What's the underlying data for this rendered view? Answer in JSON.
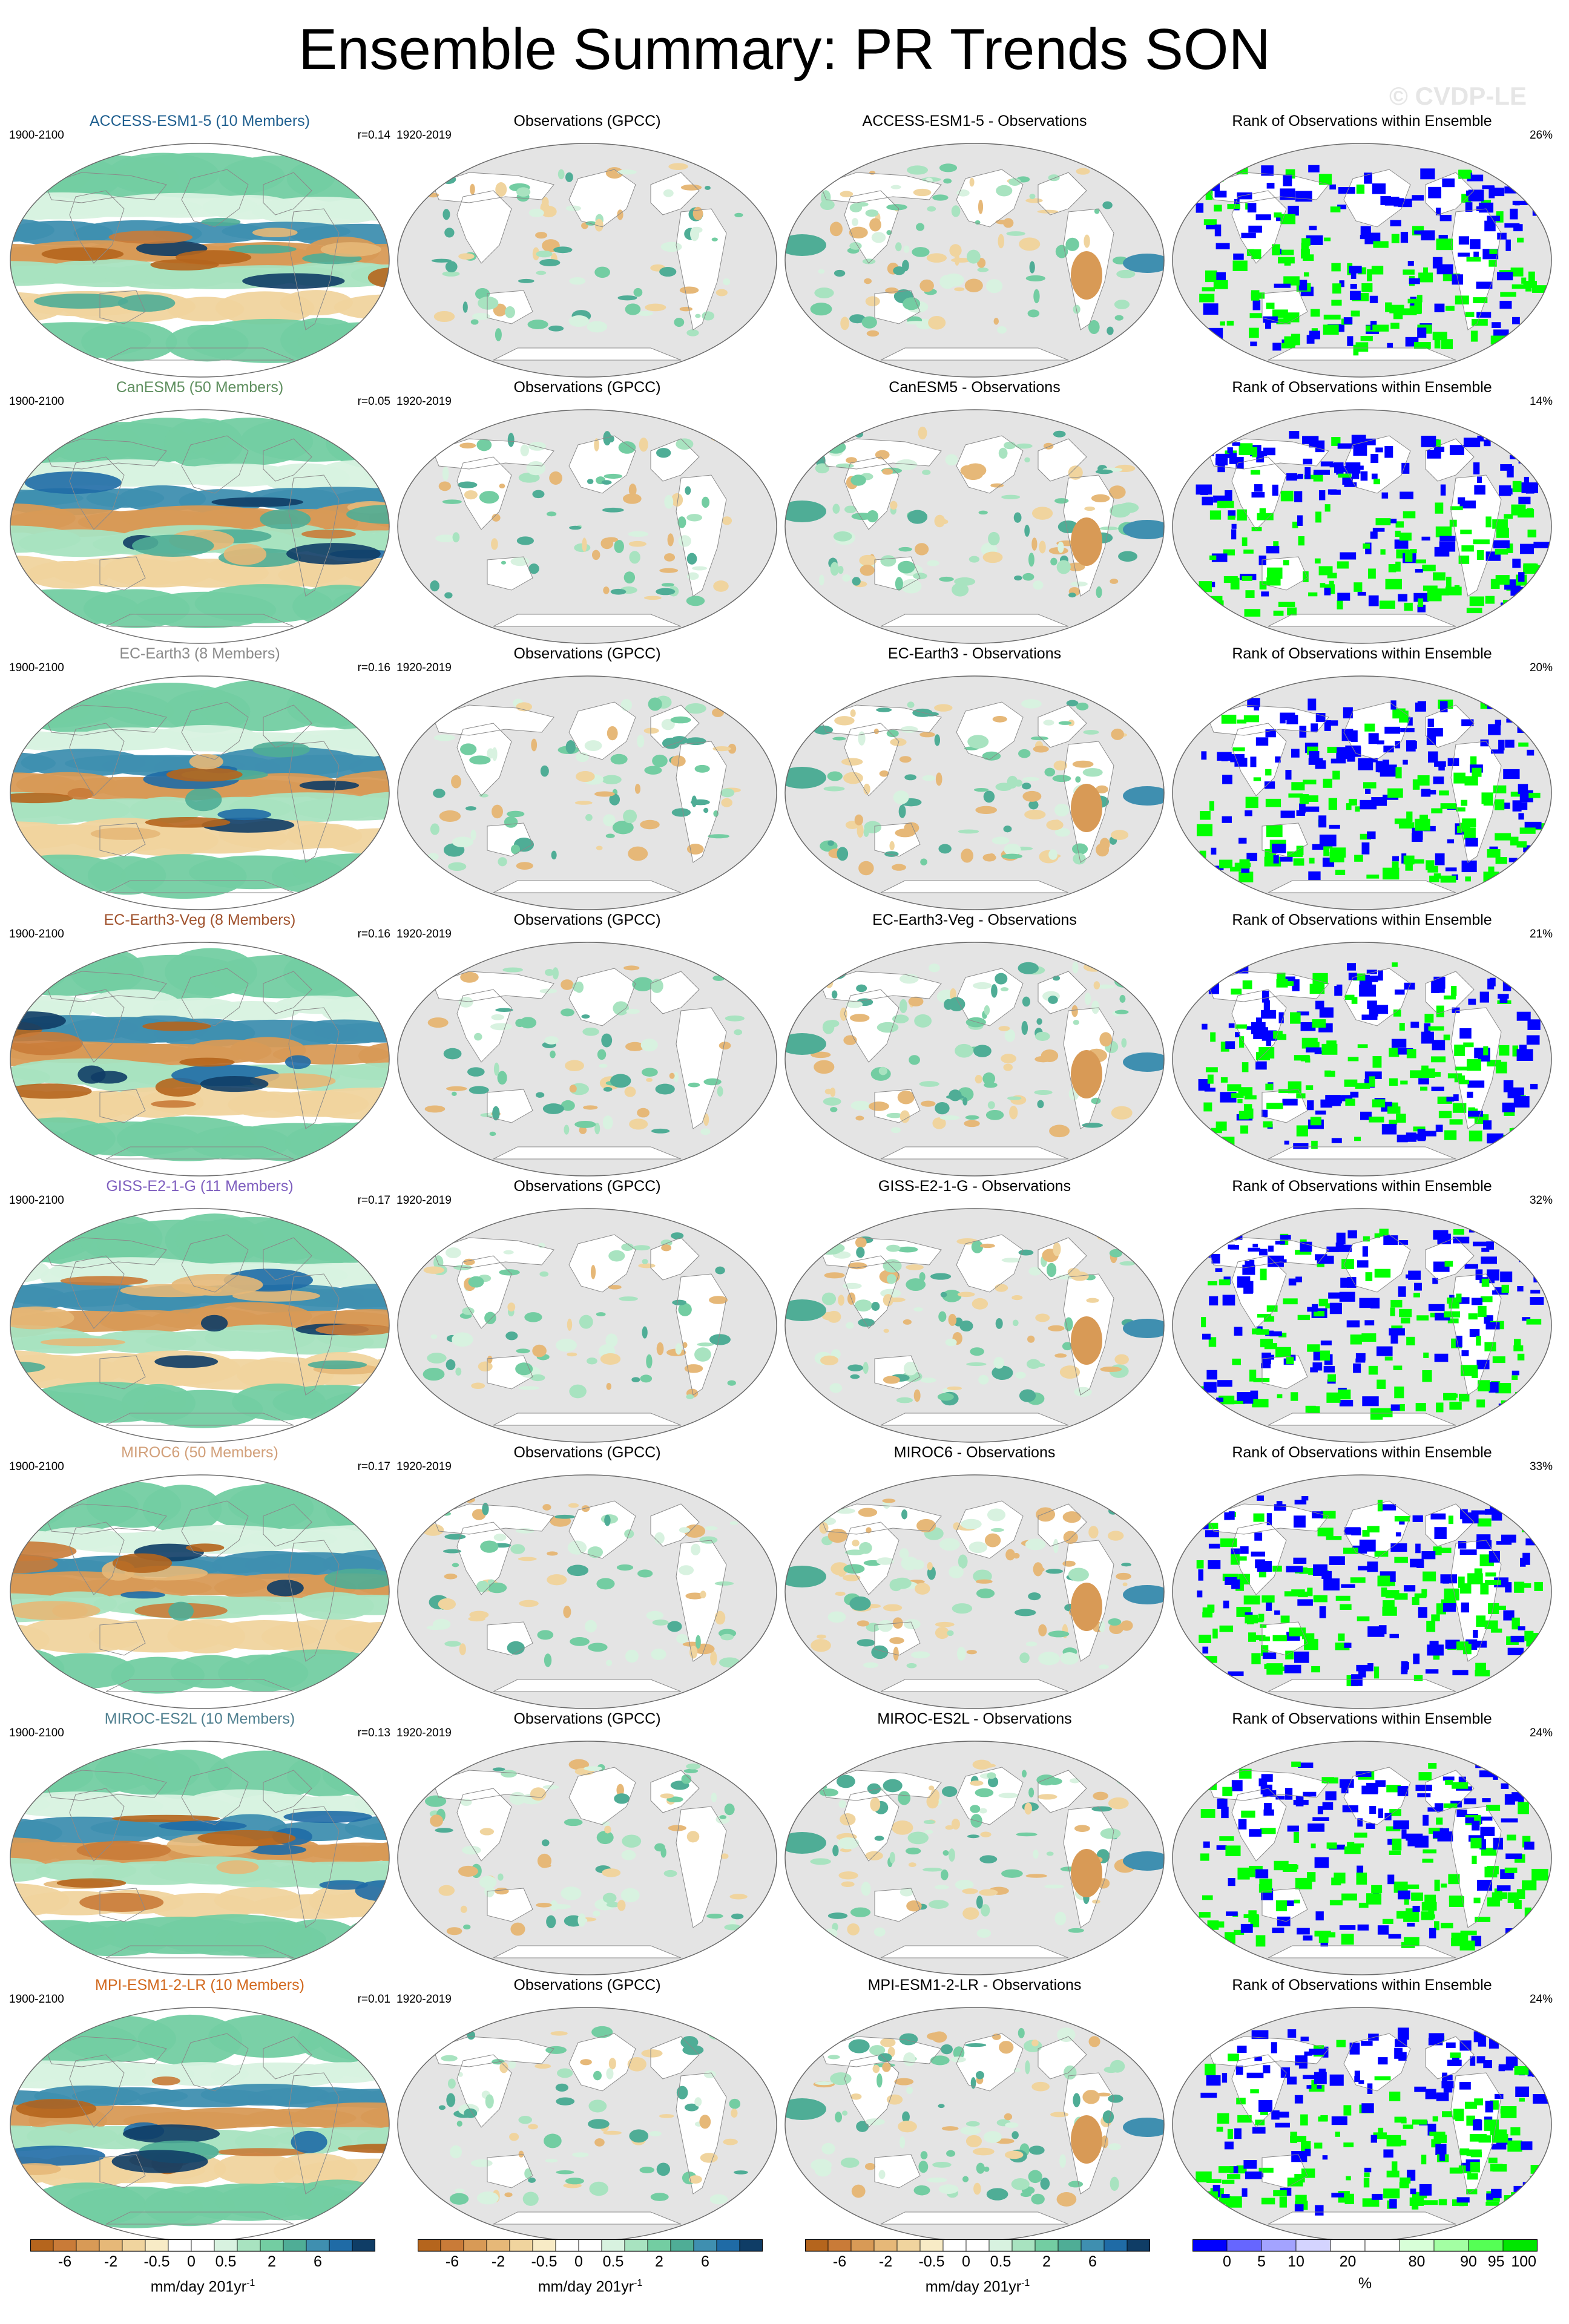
{
  "title": "Ensemble Summary: PR Trends SON",
  "watermark": "© CVDP-LE",
  "obs_title": "Observations (GPCC)",
  "obs_period": "1920-2019",
  "model_period": "1900-2100",
  "rank_title": "Rank of Observations within Ensemble",
  "models": [
    {
      "name": "ACCESS-ESM1-5",
      "label": "ACCESS-ESM1-5 (10 Members)",
      "color": "#1f5f8f",
      "r": "r=0.14",
      "diff_title": "ACCESS-ESM1-5 - Observations",
      "rank_pct": "26%"
    },
    {
      "name": "CanESM5",
      "label": "CanESM5 (50 Members)",
      "color": "#5f8f5f",
      "r": "r=0.05",
      "diff_title": "CanESM5 - Observations",
      "rank_pct": "14%"
    },
    {
      "name": "EC-Earth3",
      "label": "EC-Earth3 (8 Members)",
      "color": "#8a8a8a",
      "r": "r=0.16",
      "diff_title": "EC-Earth3 - Observations",
      "rank_pct": "20%"
    },
    {
      "name": "EC-Earth3-Veg",
      "label": "EC-Earth3-Veg (8 Members)",
      "color": "#a0522d",
      "r": "r=0.16",
      "diff_title": "EC-Earth3-Veg - Observations",
      "rank_pct": "21%"
    },
    {
      "name": "GISS-E2-1-G",
      "label": "GISS-E2-1-G (11 Members)",
      "color": "#7f5fbf",
      "r": "r=0.17",
      "diff_title": "GISS-E2-1-G - Observations",
      "rank_pct": "32%"
    },
    {
      "name": "MIROC6",
      "label": "MIROC6 (50 Members)",
      "color": "#d2a07a",
      "r": "r=0.17",
      "diff_title": "MIROC6 - Observations",
      "rank_pct": "33%"
    },
    {
      "name": "MIROC-ES2L",
      "label": "MIROC-ES2L (10 Members)",
      "color": "#4f7f8f",
      "r": "r=0.13",
      "diff_title": "MIROC-ES2L - Observations",
      "rank_pct": "24%"
    },
    {
      "name": "MPI-ESM1-2-LR",
      "label": "MPI-ESM1-2-LR (10 Members)",
      "color": "#d2691e",
      "r": "r=0.01",
      "diff_title": "MPI-ESM1-2-LR - Observations",
      "rank_pct": "24%"
    }
  ],
  "trend_colorbar": {
    "colors": [
      "#b5651d",
      "#c97b38",
      "#d89a56",
      "#e6b878",
      "#f0d49e",
      "#f8ebc6",
      "#ffffff",
      "#ffffff",
      "#d8f2e0",
      "#a8e3c0",
      "#73cda2",
      "#4fad96",
      "#3f8fb0",
      "#1f6ba6",
      "#0f3d66"
    ],
    "labels": [
      "-6",
      "-2",
      "-0.5",
      "0",
      "0.5",
      "2",
      "6"
    ],
    "unit": "mm/day 201yr",
    "unit_sup": "-1"
  },
  "rank_colorbar": {
    "colors": [
      "#0000ff",
      "#6666ff",
      "#a3a3ff",
      "#d4d4ff",
      "#ffffff",
      "#ffffff",
      "#d8ffd8",
      "#a3ffa3",
      "#55ff55",
      "#00e600"
    ],
    "labels": [
      "0",
      "5",
      "10",
      "20",
      "80",
      "90",
      "95",
      "100"
    ],
    "unit": "%"
  }
}
